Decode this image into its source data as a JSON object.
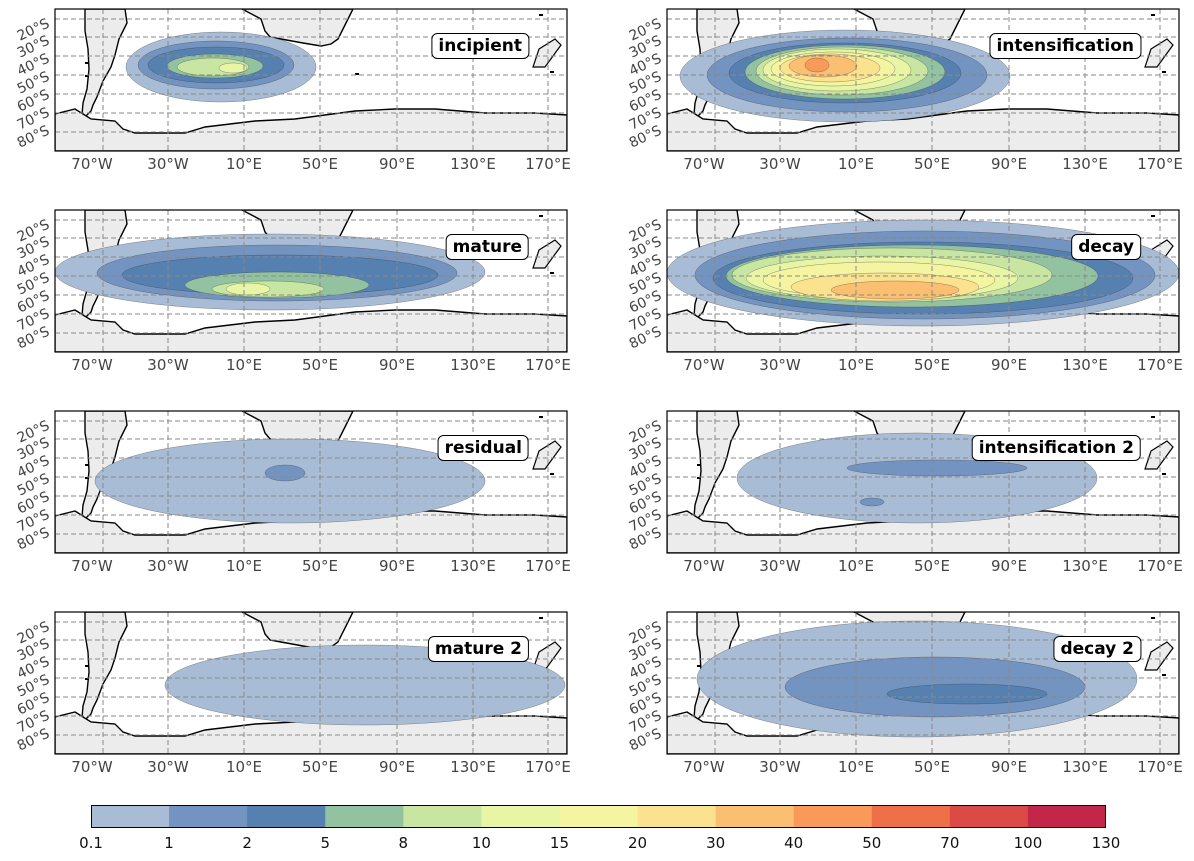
{
  "map": {
    "lat_labels": [
      "20°S",
      "30°S",
      "40°S",
      "50°S",
      "60°S",
      "70°S",
      "80°S"
    ],
    "lon_labels": [
      "70°W",
      "30°W",
      "10°E",
      "50°E",
      "90°E",
      "130°E",
      "170°E"
    ],
    "panels": [
      {
        "id": "incipient",
        "label": "incipient"
      },
      {
        "id": "intensification",
        "label": "intensification"
      },
      {
        "id": "mature",
        "label": "mature"
      },
      {
        "id": "decay",
        "label": "decay"
      },
      {
        "id": "residual",
        "label": "residual"
      },
      {
        "id": "intensification2",
        "label": "intensification 2"
      },
      {
        "id": "mature2",
        "label": "mature 2"
      },
      {
        "id": "decay2",
        "label": "decay 2"
      }
    ],
    "colorbar": {
      "levels": [
        "0.1",
        "1",
        "2",
        "5",
        "8",
        "10",
        "15",
        "20",
        "30",
        "40",
        "50",
        "70",
        "100",
        "130"
      ],
      "colors": [
        "#a8bcd6",
        "#7393c0",
        "#5580b0",
        "#93c2a0",
        "#c8e6a2",
        "#e8f5a4",
        "#f5f4a0",
        "#fbe28e",
        "#fbbf72",
        "#f99a5a",
        "#ef7048",
        "#dc4a48",
        "#c4264a"
      ]
    },
    "land_color": "#ececec",
    "grid_color": "#8a8a8a"
  }
}
